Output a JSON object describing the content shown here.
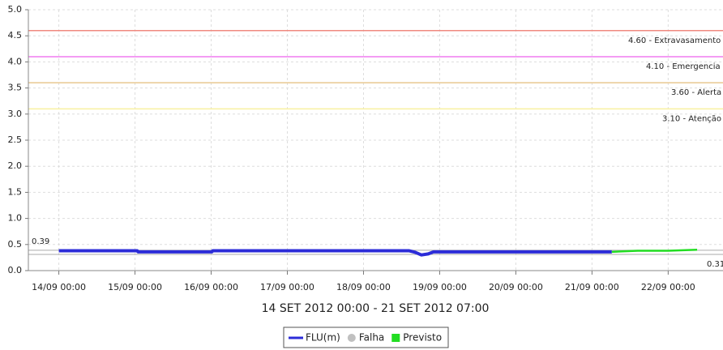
{
  "chart_data": {
    "type": "line",
    "xlabel": "14 SET 2012 00:00 - 21 SET 2012 07:00",
    "xlim": [
      -0.4,
      8.72
    ],
    "xticks": [
      {
        "value": 0,
        "label": "14/09 00:00"
      },
      {
        "value": 1,
        "label": "15/09 00:00"
      },
      {
        "value": 2,
        "label": "16/09 00:00"
      },
      {
        "value": 3,
        "label": "17/09 00:00"
      },
      {
        "value": 4,
        "label": "18/09 00:00"
      },
      {
        "value": 5,
        "label": "19/09 00:00"
      },
      {
        "value": 6,
        "label": "20/09 00:00"
      },
      {
        "value": 7,
        "label": "21/09 00:00"
      },
      {
        "value": 8,
        "label": "22/09 00:00"
      }
    ],
    "ylim": [
      0,
      5
    ],
    "yticks": [
      {
        "value": 0,
        "label": "0.0"
      },
      0.5,
      {
        "value": 1,
        "label": "1.0"
      },
      1.5,
      {
        "value": 2,
        "label": "2.0"
      },
      2.5,
      {
        "value": 3,
        "label": "3.0"
      },
      3.5,
      {
        "value": 4,
        "label": "4.0"
      },
      4.5,
      {
        "value": 5,
        "label": "5.0"
      }
    ],
    "grid": true,
    "legend": "bottom",
    "thresholds": [
      {
        "value": 4.6,
        "label": "4.60 - Extravasamento",
        "color": "#f08a80"
      },
      {
        "value": 4.1,
        "label": "4.10 - Emergencia",
        "color": "#f07cf0"
      },
      {
        "value": 3.6,
        "label": "3.60 - Alerta",
        "color": "#e8c890"
      },
      {
        "value": 3.1,
        "label": "3.10 - Atenção",
        "color": "#f8f0a0"
      }
    ],
    "reference_lines": [
      0.39,
      0.31
    ],
    "series": [
      {
        "name": "FLU(m)",
        "color": "#2c2cd8",
        "x": [
          0,
          1.03,
          1.04,
          2.01,
          2.02,
          4.6,
          4.68,
          4.76,
          4.85,
          4.92,
          7.26
        ],
        "values": [
          0.38,
          0.38,
          0.36,
          0.36,
          0.38,
          0.38,
          0.35,
          0.3,
          0.32,
          0.36,
          0.36
        ]
      },
      {
        "name": "Falha",
        "color": "#c0c0c0",
        "x": [],
        "values": []
      },
      {
        "name": "Previsto",
        "color": "#22dd22",
        "x": [
          7.26,
          7.6,
          8.0,
          8.38
        ],
        "values": [
          0.36,
          0.38,
          0.38,
          0.4
        ]
      }
    ]
  }
}
